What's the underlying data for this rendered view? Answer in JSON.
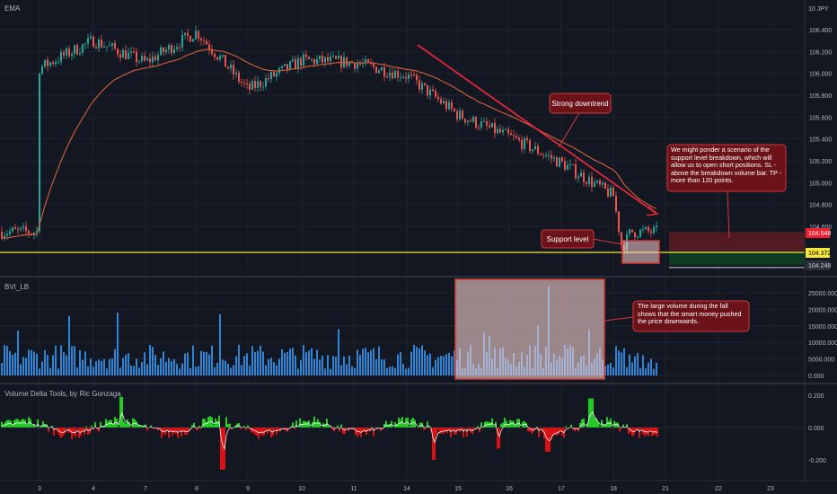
{
  "colors": {
    "background": "#131722",
    "grid": "#1e2230",
    "text": "#b2b5be",
    "up": "#26a69a",
    "down": "#ef5350",
    "ema": "#c75b3a",
    "trendline": "#e0283a",
    "support": "#f5e63c",
    "volume": "#2f86d6",
    "delta_up": "#22cc22",
    "delta_down": "#dd1111",
    "callout_bg": "#6b1319",
    "callout_border": "#d23a3a",
    "stop_zone": "#521a22",
    "target_zone": "#0f3a22"
  },
  "labels": {
    "price_pane": "EMA",
    "volume_pane": "BVI_LB",
    "delta_pane": "Volume Delta Tools, by Ric Gonzaga",
    "currency": "10 JPY"
  },
  "annotations": {
    "downtrend": "Strong downtrend",
    "support": "Support level",
    "scenario": "We might ponder a scenario of the support level breakdown, which will allow us to open short positions. SL - above the breakdown volume bar. TP - more than 120 points.",
    "volume_note": "The large volume during the fall shows that the smart money pushed the price downwards."
  },
  "price_tags": {
    "stop": "104.548",
    "current": "104.372",
    "target": "104.248"
  },
  "chart_data": [
    {
      "type": "candlestick",
      "pane": "price",
      "title": "EMA",
      "x_ticks": [
        "3",
        "4",
        "7",
        "8",
        "9",
        "10",
        "11",
        "14",
        "15",
        "16",
        "17",
        "18",
        "21",
        "22",
        "23"
      ],
      "y_ticks": [
        106.4,
        106.2,
        106.0,
        105.8,
        105.6,
        105.4,
        105.2,
        105.0,
        104.8,
        104.6
      ],
      "ylim": [
        104.2,
        106.6
      ],
      "close_path": [
        {
          "x": "3",
          "y": 106.05
        },
        {
          "x": "4",
          "y": 106.3
        },
        {
          "x": "7",
          "y": 106.1
        },
        {
          "x": "8",
          "y": 106.38
        },
        {
          "x": "9",
          "y": 105.85
        },
        {
          "x": "10",
          "y": 106.12
        },
        {
          "x": "11",
          "y": 106.1
        },
        {
          "x": "14",
          "y": 105.98
        },
        {
          "x": "15",
          "y": 105.62
        },
        {
          "x": "16",
          "y": 105.42
        },
        {
          "x": "17",
          "y": 105.18
        },
        {
          "x": "18",
          "y": 104.88
        },
        {
          "x": "18.5",
          "y": 104.4
        },
        {
          "x": "19",
          "y": 104.55
        }
      ],
      "support_level": 104.372,
      "stop_loss": 104.548,
      "take_profit": 104.248
    },
    {
      "type": "bar",
      "pane": "volume",
      "title": "BVI_LB",
      "y_ticks": [
        25000,
        20000,
        15000,
        10000,
        5000,
        0
      ],
      "y_tick_labels": [
        "25000.000",
        "20000.000",
        "15000.000",
        "10000.000",
        "5000.000",
        "0.000"
      ],
      "ylim": [
        0,
        28000
      ],
      "typical_range": [
        2000,
        13000
      ],
      "peak": 27000
    },
    {
      "type": "area",
      "pane": "delta",
      "title": "Volume Delta Tools, by Ric Gonzaga",
      "y_ticks": [
        0.2,
        0.0,
        -0.2
      ],
      "y_tick_labels": [
        "0.200",
        "0.000",
        "-0.200"
      ],
      "ylim": [
        -0.3,
        0.3
      ]
    }
  ]
}
